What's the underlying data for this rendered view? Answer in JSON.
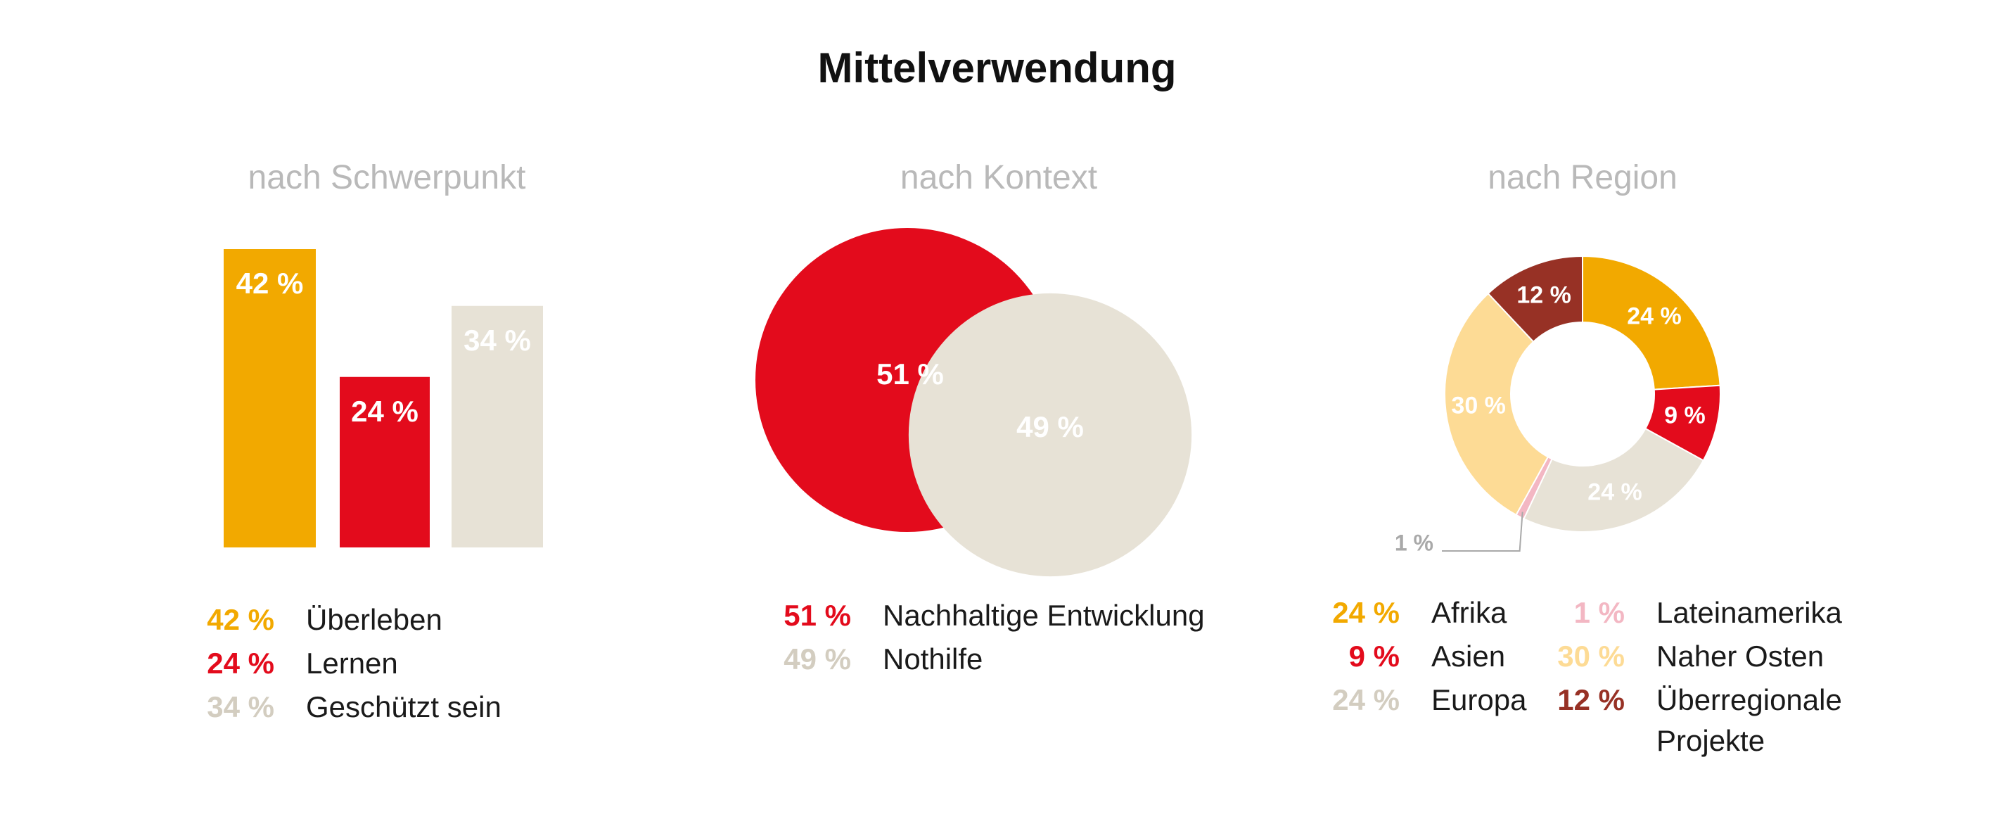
{
  "title": "Mittelverwendung",
  "colors": {
    "orange": "#F2A900",
    "red": "#E30B1C",
    "beige": "#E7E2D6",
    "pink": "#F3B7C3",
    "lightyellow": "#FDDB95",
    "darkred": "#973125",
    "subtitle_gray": "#B9B9B9",
    "callout_gray": "#A9A9A9"
  },
  "chart_data": [
    {
      "type": "bar",
      "title": "nach Schwerpunkt",
      "categories": [
        "Überleben",
        "Lernen",
        "Geschützt sein"
      ],
      "values": [
        42,
        24,
        34
      ],
      "labels": [
        "42 %",
        "24 %",
        "34 %"
      ],
      "colors": [
        "#F2A900",
        "#E30B1C",
        "#E7E2D6"
      ],
      "ylim": [
        0,
        42
      ],
      "legend": [
        {
          "value": "42 %",
          "label": "Überleben",
          "color": "#F2A900"
        },
        {
          "value": "24 %",
          "label": "Lernen",
          "color": "#E30B1C"
        },
        {
          "value": "34 %",
          "label": "Geschützt sein",
          "color": "#D3CDC0"
        }
      ]
    },
    {
      "type": "bubble",
      "title": "nach Kontext",
      "categories": [
        "Nachhaltige Entwicklung",
        "Nothilfe"
      ],
      "values": [
        51,
        49
      ],
      "labels": [
        "51 %",
        "49 %"
      ],
      "colors": [
        "#E30B1C",
        "#E7E2D6"
      ],
      "legend": [
        {
          "value": "51 %",
          "label": "Nachhaltige Entwicklung",
          "color": "#E30B1C"
        },
        {
          "value": "49 %",
          "label": "Nothilfe",
          "color": "#D3CDC0"
        }
      ]
    },
    {
      "type": "pie",
      "title": "nach Region",
      "categories": [
        "Afrika",
        "Asien",
        "Europa",
        "Lateinamerika",
        "Naher Osten",
        "Überregionale Projekte"
      ],
      "values": [
        24,
        9,
        24,
        1,
        30,
        12
      ],
      "labels": [
        "24 %",
        "9 %",
        "24 %",
        "1 %",
        "30 %",
        "12 %"
      ],
      "colors": [
        "#F2A900",
        "#E30B1C",
        "#E7E2D6",
        "#F3B7C3",
        "#FDDB95",
        "#973125"
      ],
      "legend_left": [
        {
          "value": "24 %",
          "label": "Afrika",
          "color": "#F2A900"
        },
        {
          "value": "9 %",
          "label": "Asien",
          "color": "#E30B1C"
        },
        {
          "value": "24 %",
          "label": "Europa",
          "color": "#D3CDC0"
        }
      ],
      "legend_right": [
        {
          "value": "1 %",
          "label": "Lateinamerika",
          "color": "#F3B7C3"
        },
        {
          "value": "30 %",
          "label": "Naher Osten",
          "color": "#FDDB95"
        },
        {
          "value": "12 %",
          "label": "Überregionale",
          "label2": "Projekte",
          "color": "#973125"
        }
      ]
    }
  ]
}
